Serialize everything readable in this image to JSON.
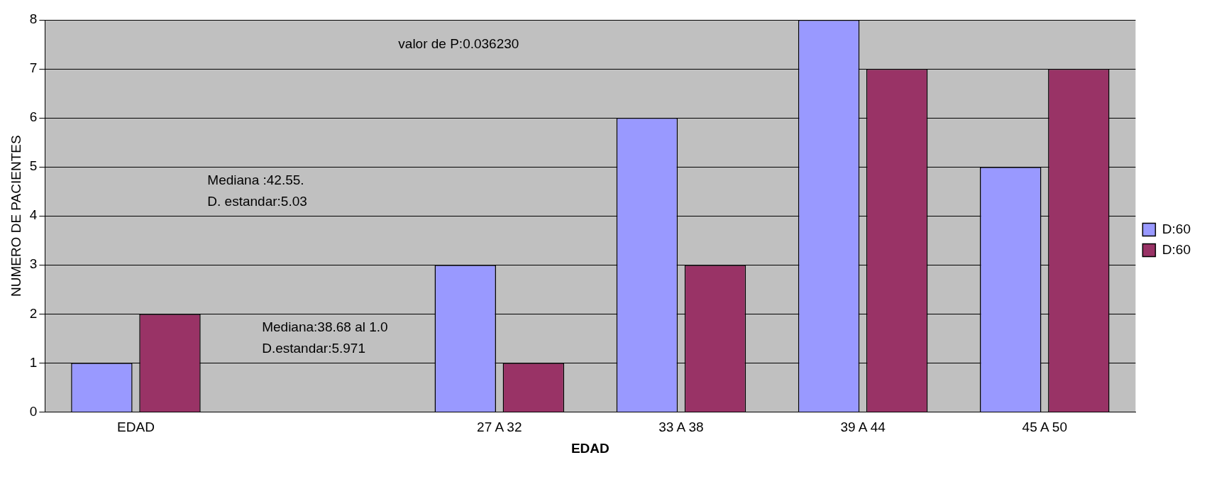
{
  "chart_data": {
    "type": "bar",
    "xlabel": "EDAD",
    "ylabel": "NUMERO DE PACIENTES",
    "categories": [
      "EDAD",
      null,
      "27 A 32",
      "33 A 38",
      "39 A 44",
      "45 A 50"
    ],
    "series": [
      {
        "name": "D:60",
        "color": "#9999ff",
        "values": [
          1,
          null,
          3,
          6,
          8,
          5
        ]
      },
      {
        "name": "D:60",
        "color": "#993366",
        "values": [
          2,
          null,
          1,
          3,
          7,
          7
        ]
      }
    ],
    "ylim": [
      0,
      8
    ],
    "yticks": [
      0,
      1,
      2,
      3,
      4,
      5,
      6,
      7,
      8
    ],
    "grid": "y",
    "legend": "right",
    "annotations": [
      "valor de P:0.036230",
      "Mediana :42.55.",
      "D. estandar:5.03",
      "Mediana:38.68 al 1.0",
      "D.estandar:5.971"
    ]
  }
}
